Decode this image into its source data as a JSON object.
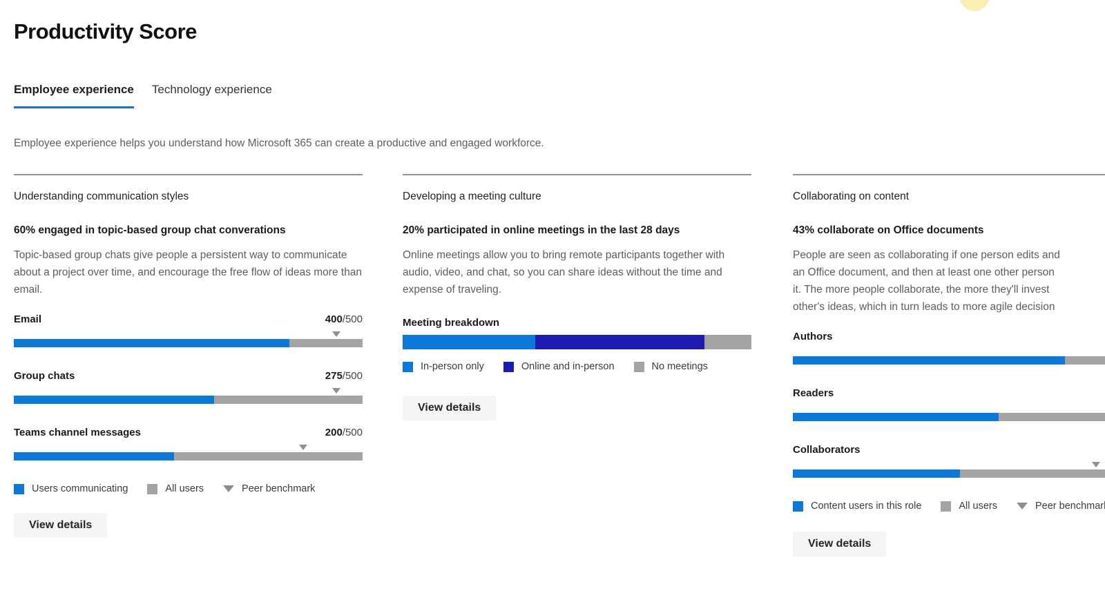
{
  "header": {
    "title": "Productivity Score"
  },
  "tabs": {
    "employee": {
      "label": "Employee experience",
      "active": true
    },
    "technology": {
      "label": "Technology experience",
      "active": false
    }
  },
  "intro": "Employee experience helps you understand how Microsoft 365 can create a productive and engaged workforce.",
  "colors": {
    "accent_blue": "#0b79da",
    "dark_blue": "#1b1ab1",
    "bar_gray": "#a4a4a4",
    "benchmark_gray": "#8f8f8f",
    "tab_underline_blue": "#1e6bd1",
    "body_text_gray": "#5f5d5b"
  },
  "columns": {
    "communication": {
      "section": "Understanding communication styles",
      "claim": "60% engaged in topic-based group chat converations",
      "body": "Topic-based group chats give people a persistent way to communicate about a project over time, and encourage the free flow of ideas more than email.",
      "metrics": [
        {
          "label": "Email",
          "score": "400",
          "max": "/500",
          "fill_pct": 79,
          "benchmark_pct": 92.5
        },
        {
          "label": "Group chats",
          "score": "275",
          "max": "/500",
          "fill_pct": 57.5,
          "benchmark_pct": 92.5
        },
        {
          "label": "Teams channel messages",
          "score": "200",
          "max": "/500",
          "fill_pct": 46,
          "benchmark_pct": 83
        }
      ],
      "legend": [
        {
          "label": "Users communicating",
          "swatch_color": "#0b79da"
        },
        {
          "label": "All users",
          "swatch_color": "#a4a4a4"
        },
        {
          "label": "Peer benchmark",
          "swatch_color": "#8e8e8e"
        }
      ],
      "button": "View details"
    },
    "meetings": {
      "section": "Developing a meeting culture",
      "claim": "20% participated in online meetings in the last 28 days",
      "body": "Online meetings allow you to bring remote participants together with audio, video, and chat, so you can share ideas without the time and expense of traveling.",
      "chart_title": "Meeting breakdown",
      "segments": [
        {
          "label": "In-person only",
          "pct": 38,
          "color": "#0b79da"
        },
        {
          "label": "Online and in-person",
          "pct": 48.5,
          "color": "#1b1ab1"
        },
        {
          "label": "No meetings",
          "pct": 13.5,
          "color": "#a4a4a4"
        }
      ],
      "button": "View details"
    },
    "collaboration": {
      "section": "Collaborating on content",
      "claim": "43% collaborate on Office documents",
      "body_lines": [
        "People are seen as collaborating if one person edits and",
        "an Office document, and then at least one other person",
        "it. The more people collaborate, the more they'll invest",
        "other's ideas, which in turn leads to more agile decision"
      ],
      "metrics": [
        {
          "label": "Authors",
          "fill_pct": 78
        },
        {
          "label": "Readers",
          "fill_pct": 59
        },
        {
          "label": "Collaborators",
          "fill_pct": 48,
          "benchmark_pct": 87
        }
      ],
      "legend": [
        {
          "label": "Content users in this role",
          "swatch_color": "#0b79da"
        },
        {
          "label": "All users",
          "swatch_color": "#a4a4a4"
        },
        {
          "label": "Peer benchmark",
          "swatch_color": "#8e8e8e"
        }
      ],
      "button": "View details"
    }
  }
}
